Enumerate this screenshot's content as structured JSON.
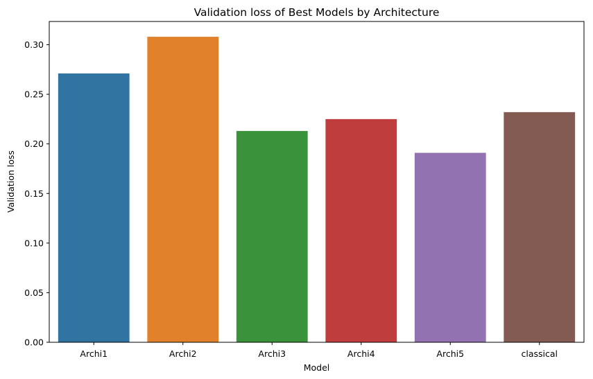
{
  "chart_data": {
    "type": "bar",
    "title": "Validation loss of Best Models by Architecture",
    "xlabel": "Model",
    "ylabel": "Validation loss",
    "categories": [
      "Archi1",
      "Archi2",
      "Archi3",
      "Archi4",
      "Archi5",
      "classical"
    ],
    "values": [
      0.271,
      0.308,
      0.213,
      0.225,
      0.191,
      0.232
    ],
    "colors": [
      "#3274a1",
      "#e1812c",
      "#3a923a",
      "#c03d3e",
      "#9372b2",
      "#845b53"
    ],
    "ylim": [
      0,
      0.3234
    ],
    "yticks": [
      0.0,
      0.05,
      0.1,
      0.15,
      0.2,
      0.25,
      0.3
    ],
    "ytick_labels": [
      "0.00",
      "0.05",
      "0.10",
      "0.15",
      "0.20",
      "0.25",
      "0.30"
    ],
    "grid": false,
    "legend": "none"
  }
}
